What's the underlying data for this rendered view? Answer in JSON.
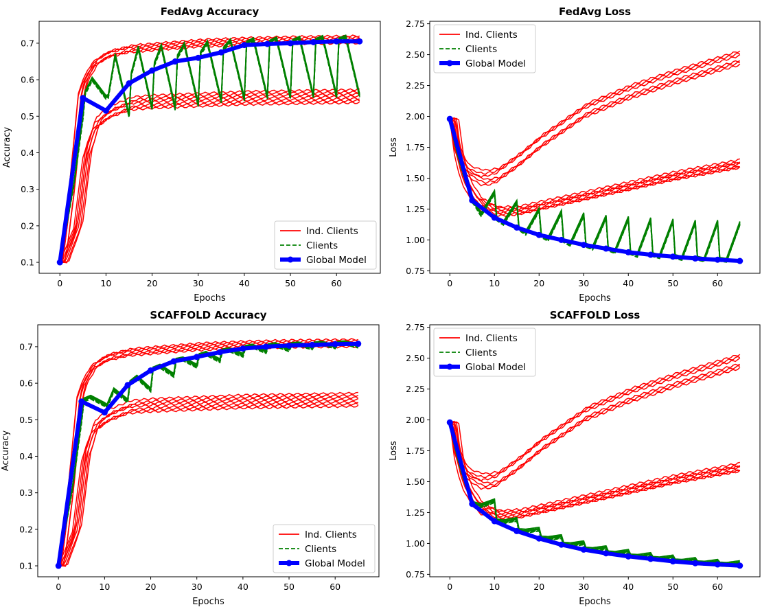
{
  "chart_data": [
    {
      "title": "FedAvg Accuracy",
      "type": "line",
      "xlabel": "Epochs",
      "ylabel": "Accuracy",
      "xlim": [
        -4.5,
        69.5
      ],
      "ylim": [
        0.07,
        0.76
      ],
      "xticks": [
        0,
        10,
        20,
        30,
        40,
        50,
        60
      ],
      "yticks": [
        0.1,
        0.2,
        0.3,
        0.4,
        0.5,
        0.6,
        0.7
      ],
      "legend": {
        "position": "bottom-right",
        "entries": [
          "Ind. Clients",
          "Clients",
          "Global Model"
        ]
      },
      "series": [
        {
          "name": "Global Model",
          "style": "blue-thick-markers",
          "x": [
            0,
            5,
            10,
            15,
            20,
            25,
            30,
            35,
            40,
            45,
            50,
            55,
            60,
            65
          ],
          "values": [
            0.1,
            0.55,
            0.515,
            0.59,
            0.625,
            0.65,
            0.66,
            0.675,
            0.695,
            0.698,
            0.7,
            0.703,
            0.705,
            0.705
          ]
        },
        {
          "name": "Ind. Clients (high group)",
          "style": "red",
          "count": 6,
          "x": [
            0,
            2,
            4,
            5,
            7,
            10,
            15,
            20,
            30,
            40,
            50,
            65
          ],
          "values": [
            0.1,
            0.3,
            0.56,
            0.6,
            0.645,
            0.67,
            0.685,
            0.69,
            0.7,
            0.705,
            0.708,
            0.71
          ]
        },
        {
          "name": "Ind. Clients (low group)",
          "style": "red",
          "count": 7,
          "x": [
            0,
            3,
            5,
            7,
            10,
            15,
            20,
            30,
            40,
            50,
            65
          ],
          "values": [
            0.1,
            0.2,
            0.4,
            0.48,
            0.51,
            0.535,
            0.54,
            0.545,
            0.55,
            0.552,
            0.555
          ]
        },
        {
          "name": "Clients (local rounds)",
          "style": "green-dashed",
          "rounds": [
            [
              5,
              0.55,
              0.6,
              0.55
            ],
            [
              10,
              0.515,
              0.665,
              0.5
            ],
            [
              15,
              0.59,
              0.685,
              0.52
            ],
            [
              20,
              0.625,
              0.69,
              0.52
            ],
            [
              25,
              0.65,
              0.695,
              0.53
            ],
            [
              30,
              0.66,
              0.7,
              0.54
            ],
            [
              35,
              0.675,
              0.705,
              0.545
            ],
            [
              40,
              0.695,
              0.708,
              0.55
            ],
            [
              45,
              0.698,
              0.71,
              0.55
            ],
            [
              50,
              0.7,
              0.712,
              0.552
            ],
            [
              55,
              0.703,
              0.714,
              0.553
            ],
            [
              60,
              0.705,
              0.715,
              0.555
            ]
          ]
        }
      ]
    },
    {
      "title": "FedAvg Loss",
      "type": "line",
      "xlabel": "Epochs",
      "ylabel": "Loss",
      "xlim": [
        -4.5,
        69.5
      ],
      "ylim": [
        0.73,
        2.77
      ],
      "xticks": [
        0,
        10,
        20,
        30,
        40,
        50,
        60
      ],
      "yticks": [
        0.75,
        1.0,
        1.25,
        1.5,
        1.75,
        2.0,
        2.25,
        2.5,
        2.75
      ],
      "legend": {
        "position": "top-left",
        "entries": [
          "Ind. Clients",
          "Clients",
          "Global Model"
        ]
      },
      "series": [
        {
          "name": "Global Model",
          "style": "blue-thick-markers",
          "x": [
            0,
            5,
            10,
            15,
            20,
            25,
            30,
            35,
            40,
            45,
            50,
            55,
            60,
            65
          ],
          "values": [
            1.98,
            1.32,
            1.18,
            1.1,
            1.04,
            1.0,
            0.96,
            0.93,
            0.9,
            0.88,
            0.865,
            0.85,
            0.84,
            0.83
          ]
        },
        {
          "name": "Ind. Clients (high group)",
          "style": "red",
          "count": 6,
          "x": [
            0,
            1,
            2,
            3,
            4,
            5,
            7,
            10,
            15,
            20,
            30,
            40,
            50,
            65
          ],
          "values": [
            1.98,
            1.75,
            1.65,
            1.58,
            1.55,
            1.53,
            1.5,
            1.52,
            1.65,
            1.8,
            2.05,
            2.2,
            2.32,
            2.48
          ]
        },
        {
          "name": "Ind. Clients (low group)",
          "style": "red",
          "count": 7,
          "x": [
            0,
            1,
            2,
            3,
            5,
            7,
            10,
            15,
            20,
            30,
            40,
            50,
            65
          ],
          "values": [
            1.98,
            1.7,
            1.55,
            1.45,
            1.33,
            1.27,
            1.23,
            1.24,
            1.28,
            1.36,
            1.44,
            1.52,
            1.62
          ]
        },
        {
          "name": "Clients (local rounds)",
          "style": "green-dashed",
          "rounds": [
            [
              5,
              1.32,
              1.2,
              1.38
            ],
            [
              10,
              1.18,
              1.13,
              1.3
            ],
            [
              15,
              1.1,
              1.05,
              1.24
            ],
            [
              20,
              1.04,
              1.0,
              1.22
            ],
            [
              25,
              1.0,
              0.96,
              1.2
            ],
            [
              30,
              0.96,
              0.93,
              1.18
            ],
            [
              35,
              0.93,
              0.9,
              1.17
            ],
            [
              40,
              0.9,
              0.87,
              1.16
            ],
            [
              45,
              0.88,
              0.86,
              1.15
            ],
            [
              50,
              0.865,
              0.845,
              1.14
            ],
            [
              55,
              0.85,
              0.835,
              1.14
            ],
            [
              60,
              0.84,
              0.83,
              1.13
            ]
          ]
        }
      ]
    },
    {
      "title": "SCAFFOLD Accuracy",
      "type": "line",
      "xlabel": "Epochs",
      "ylabel": "Accuracy",
      "xlim": [
        -4.5,
        69.5
      ],
      "ylim": [
        0.07,
        0.76
      ],
      "xticks": [
        0,
        10,
        20,
        30,
        40,
        50,
        60
      ],
      "yticks": [
        0.1,
        0.2,
        0.3,
        0.4,
        0.5,
        0.6,
        0.7
      ],
      "legend": {
        "position": "bottom-right",
        "entries": [
          "Ind. Clients",
          "Clients",
          "Global Model"
        ]
      },
      "series": [
        {
          "name": "Global Model",
          "style": "blue-thick-markers",
          "x": [
            0,
            5,
            10,
            15,
            20,
            25,
            30,
            35,
            40,
            45,
            50,
            55,
            60,
            65
          ],
          "values": [
            0.1,
            0.55,
            0.52,
            0.595,
            0.635,
            0.66,
            0.672,
            0.685,
            0.695,
            0.7,
            0.703,
            0.705,
            0.707,
            0.708
          ]
        },
        {
          "name": "Ind. Clients (high group)",
          "style": "red",
          "count": 6,
          "x": [
            0,
            2,
            4,
            5,
            7,
            10,
            15,
            20,
            30,
            40,
            50,
            65
          ],
          "values": [
            0.1,
            0.3,
            0.56,
            0.6,
            0.645,
            0.67,
            0.685,
            0.69,
            0.7,
            0.705,
            0.708,
            0.71
          ]
        },
        {
          "name": "Ind. Clients (low group)",
          "style": "red",
          "count": 7,
          "x": [
            0,
            3,
            5,
            7,
            10,
            15,
            20,
            30,
            40,
            50,
            65
          ],
          "values": [
            0.1,
            0.2,
            0.4,
            0.48,
            0.51,
            0.535,
            0.54,
            0.545,
            0.55,
            0.552,
            0.555
          ]
        },
        {
          "name": "Clients (local rounds)",
          "style": "green-dashed",
          "rounds": [
            [
              5,
              0.55,
              0.56,
              0.54
            ],
            [
              10,
              0.52,
              0.58,
              0.55
            ],
            [
              15,
              0.595,
              0.615,
              0.58
            ],
            [
              20,
              0.635,
              0.645,
              0.62
            ],
            [
              25,
              0.66,
              0.665,
              0.645
            ],
            [
              30,
              0.672,
              0.68,
              0.66
            ],
            [
              35,
              0.685,
              0.69,
              0.675
            ],
            [
              40,
              0.695,
              0.7,
              0.685
            ],
            [
              45,
              0.7,
              0.704,
              0.69
            ],
            [
              50,
              0.703,
              0.706,
              0.695
            ],
            [
              55,
              0.705,
              0.708,
              0.698
            ],
            [
              60,
              0.707,
              0.709,
              0.7
            ]
          ]
        }
      ]
    },
    {
      "title": "SCAFFOLD Loss",
      "type": "line",
      "xlabel": "Epochs",
      "ylabel": "Loss",
      "xlim": [
        -4.5,
        69.5
      ],
      "ylim": [
        0.73,
        2.77
      ],
      "xticks": [
        0,
        10,
        20,
        30,
        40,
        50,
        60
      ],
      "yticks": [
        0.75,
        1.0,
        1.25,
        1.5,
        1.75,
        2.0,
        2.25,
        2.5,
        2.75
      ],
      "legend": {
        "position": "top-left",
        "entries": [
          "Ind. Clients",
          "Clients",
          "Global Model"
        ]
      },
      "series": [
        {
          "name": "Global Model",
          "style": "blue-thick-markers",
          "x": [
            0,
            5,
            10,
            15,
            20,
            25,
            30,
            35,
            40,
            45,
            50,
            55,
            60,
            65
          ],
          "values": [
            1.98,
            1.32,
            1.18,
            1.1,
            1.04,
            0.99,
            0.95,
            0.92,
            0.895,
            0.875,
            0.855,
            0.84,
            0.83,
            0.82
          ]
        },
        {
          "name": "Ind. Clients (high group)",
          "style": "red",
          "count": 6,
          "x": [
            0,
            1,
            2,
            3,
            4,
            5,
            7,
            10,
            15,
            20,
            30,
            40,
            50,
            65
          ],
          "values": [
            1.98,
            1.75,
            1.65,
            1.58,
            1.55,
            1.53,
            1.5,
            1.52,
            1.65,
            1.8,
            2.05,
            2.2,
            2.32,
            2.48
          ]
        },
        {
          "name": "Ind. Clients (low group)",
          "style": "red",
          "count": 7,
          "x": [
            0,
            1,
            2,
            3,
            5,
            7,
            10,
            15,
            20,
            30,
            40,
            50,
            65
          ],
          "values": [
            1.98,
            1.7,
            1.55,
            1.45,
            1.33,
            1.27,
            1.23,
            1.24,
            1.28,
            1.36,
            1.44,
            1.52,
            1.62
          ]
        },
        {
          "name": "Clients (local rounds)",
          "style": "green-dashed",
          "rounds": [
            [
              5,
              1.32,
              1.3,
              1.34
            ],
            [
              10,
              1.18,
              1.17,
              1.19
            ],
            [
              15,
              1.1,
              1.095,
              1.11
            ],
            [
              20,
              1.04,
              1.035,
              1.05
            ],
            [
              25,
              0.99,
              0.985,
              1.0
            ],
            [
              30,
              0.95,
              0.945,
              0.96
            ],
            [
              35,
              0.92,
              0.915,
              0.93
            ],
            [
              40,
              0.895,
              0.89,
              0.905
            ],
            [
              45,
              0.875,
              0.87,
              0.885
            ],
            [
              50,
              0.855,
              0.85,
              0.865
            ],
            [
              55,
              0.84,
              0.835,
              0.85
            ],
            [
              60,
              0.83,
              0.825,
              0.84
            ]
          ]
        }
      ]
    }
  ]
}
